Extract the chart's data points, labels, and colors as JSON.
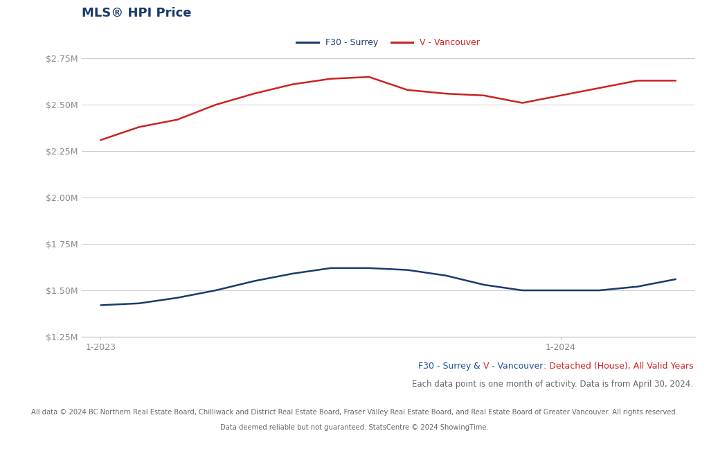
{
  "title": "MLS® HPI Price",
  "title_color": "#1a3a6b",
  "background_color": "#ffffff",
  "grid_color": "#cccccc",
  "surrey_label": "F30 - Surrey",
  "vancouver_label": "V - Vancouver",
  "surrey_color": "#1a3a6b",
  "vancouver_color": "#cc2222",
  "x_labels": [
    "1-2023",
    "1-2024"
  ],
  "x_tick_positions": [
    0,
    12
  ],
  "surrey_values": [
    1.42,
    1.43,
    1.46,
    1.5,
    1.55,
    1.59,
    1.62,
    1.62,
    1.61,
    1.58,
    1.53,
    1.5,
    1.5,
    1.5,
    1.52,
    1.56
  ],
  "vancouver_values": [
    2.31,
    2.38,
    2.42,
    2.5,
    2.56,
    2.61,
    2.64,
    2.65,
    2.58,
    2.56,
    2.55,
    2.51,
    2.55,
    2.59,
    2.63,
    2.63
  ],
  "ylim": [
    1.25,
    2.75
  ],
  "yticks": [
    1.25,
    1.5,
    1.75,
    2.0,
    2.25,
    2.5,
    2.75
  ],
  "ytick_labels": [
    "$1.25M",
    "$1.50M",
    "$1.75M",
    "$2.00M",
    "$2.25M",
    "$2.50M",
    "$2.75M"
  ],
  "subtitle_parts": [
    {
      "text": "F30 - Surrey",
      "color": "#1a5096"
    },
    {
      "text": " & ",
      "color": "#1a5096"
    },
    {
      "text": "V",
      "color": "#cc2222"
    },
    {
      "text": " - Vancouver",
      "color": "#1a5096"
    },
    {
      "text": ": Detached (House), All Valid Years",
      "color": "#cc2222"
    }
  ],
  "note_text": "Each data point is one month of activity. Data is from April 30, 2024.",
  "note_color": "#666666",
  "footer_text1": "All data © 2024 BC Northern Real Estate Board, Chilliwack and District Real Estate Board, Fraser Valley Real Estate Board, and Real Estate Board of Greater Vancouver. All rights reserved.",
  "footer_text2": "Data deemed reliable but not guaranteed. StatsCentre © 2024 ShowingTime.",
  "footer_color": "#666666"
}
